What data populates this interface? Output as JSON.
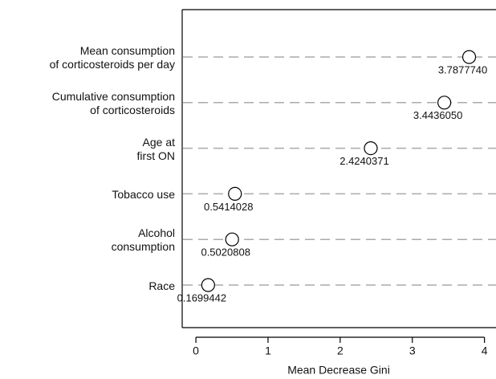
{
  "chart_data": {
    "type": "dot",
    "x_label": "Mean Decrease Gini",
    "categories": [
      "Mean consumption\nof corticosteroids per day",
      "Cumulative consumption\nof corticosteroids",
      "Age at\nfirst ON",
      "Tobacco use",
      "Alcohol\nconsumption",
      "Race"
    ],
    "values": [
      3.787774,
      3.443605,
      2.4240371,
      0.5414028,
      0.5020808,
      0.1699442
    ],
    "value_labels": [
      "3.7877740",
      "3.4436050",
      "2.4240371",
      "0.5414028",
      "0.5020808",
      "0.1699442"
    ],
    "xlim": [
      -0.19,
      4.16
    ],
    "xticks": [
      0,
      1,
      2,
      3,
      4
    ],
    "color": "#ffffff"
  }
}
